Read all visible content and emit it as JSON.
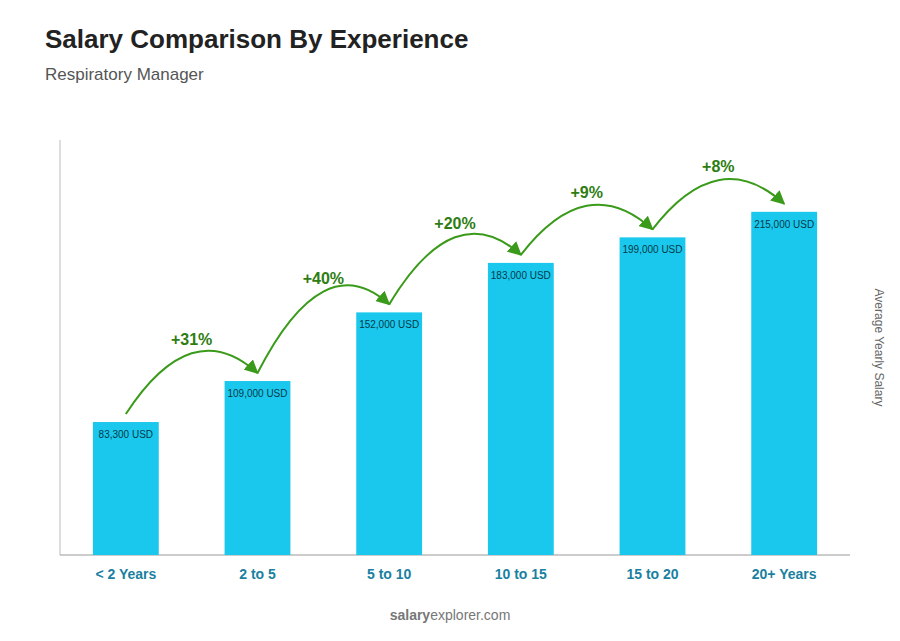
{
  "chart_data": {
    "type": "bar",
    "title": "Salary Comparison By Experience",
    "subtitle": "Respiratory Manager",
    "y_label": "Average Yearly Salary",
    "categories": [
      "< 2 Years",
      "2 to 5",
      "5 to 10",
      "10 to 15",
      "15 to 20",
      "20+ Years"
    ],
    "values": [
      83300,
      109000,
      152000,
      183000,
      199000,
      215000
    ],
    "value_labels": [
      "83,300 USD",
      "109,000 USD",
      "152,000 USD",
      "183,000 USD",
      "199,000 USD",
      "215,000 USD"
    ],
    "data_labels": true,
    "annotations": [
      "+31%",
      "+40%",
      "+20%",
      "+9%",
      "+8%"
    ],
    "watermark": [
      "salary",
      "explorer.com"
    ],
    "color": "#1AC8ED",
    "ylim": [
      0,
      260000
    ],
    "tick_labels": "x",
    "grid": false
  }
}
